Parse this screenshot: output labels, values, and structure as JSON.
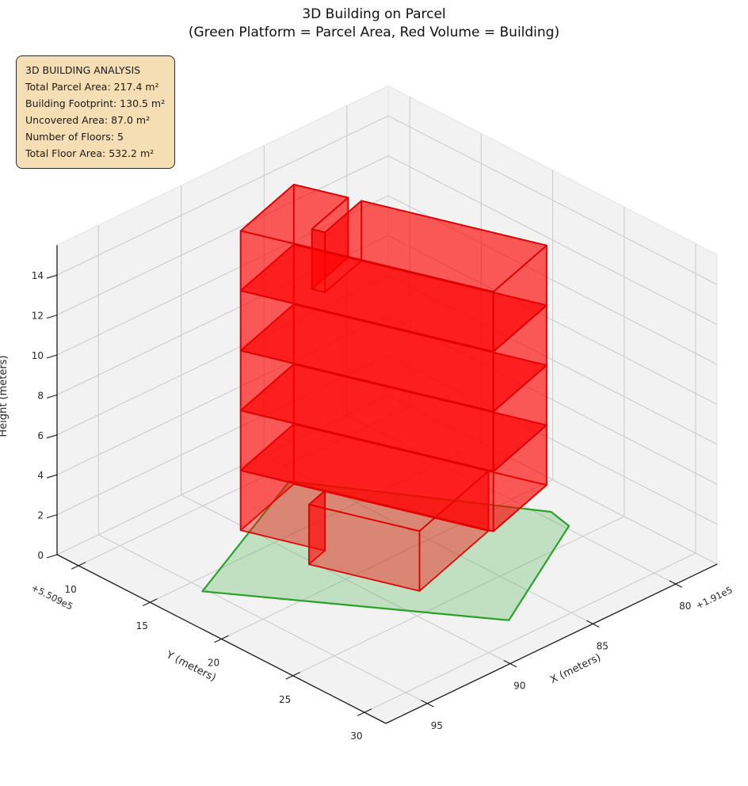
{
  "header": {
    "title_line1": "3D Building on Parcel",
    "title_line2": "(Green Platform = Parcel Area, Red Volume = Building)"
  },
  "info_box": {
    "title": "3D BUILDING ANALYSIS",
    "lines": [
      "Total Parcel Area: 217.4 m²",
      "Building Footprint: 130.5 m²",
      "Uncovered Area: 87.0 m²",
      "Number of Floors: 5",
      "Total Floor Area: 532.2 m²"
    ],
    "bg_color": "#f5deb3",
    "border_color": "#2b2b2b"
  },
  "chart_data": {
    "type": "3d-building-plot",
    "title": "3D Building on Parcel",
    "subtitle": "(Green Platform = Parcel Area, Red Volume = Building)",
    "axes": {
      "x": {
        "label": "X (meters)",
        "ticks": [
          95,
          90,
          85,
          80
        ],
        "offset_text": "+1.91e5",
        "range": [
          77.5,
          97.5
        ],
        "direction": "reversed"
      },
      "y": {
        "label": "Y (meters)",
        "ticks": [
          10,
          15,
          20,
          25,
          30
        ],
        "offset_text": "+5.509e5",
        "range": [
          8.5,
          31.5
        ]
      },
      "z": {
        "label": "Height (meters)",
        "ticks": [
          0,
          2,
          4,
          6,
          8,
          10,
          12,
          14
        ],
        "range": [
          0,
          15.5
        ]
      }
    },
    "parcel": {
      "vertices": [
        [
          95.2,
          16.0
        ],
        [
          85.8,
          11.2
        ],
        [
          79.5,
          22.2
        ],
        [
          79.8,
          23.8
        ],
        [
          87.4,
          28.4
        ]
      ],
      "edge_color": "#2aa22a",
      "fill_color": "rgba(80,180,80,0.30)",
      "area_m2": 217.4
    },
    "building": {
      "edge_color": "rgba(222,0,0,0.95)",
      "face_color": "rgba(255,0,0,0.40)",
      "floor_height_m": 3,
      "num_floors": 5,
      "footprint_m2": 130.5,
      "floors": [
        {
          "name": "floor-1",
          "z0": 0,
          "z1": 3,
          "footprint": [
            [
              90.3,
              13.0
            ],
            [
              88.91,
              17.28
            ],
            [
              90.24,
              17.71
            ],
            [
              88.41,
              23.32
            ],
            [
              82.61,
              21.43
            ],
            [
              85.83,
              11.54
            ]
          ]
        },
        {
          "name": "floor-2",
          "z0": 3,
          "z1": 6,
          "footprint": [
            [
              90.3,
              13.0
            ],
            [
              86.12,
              25.84
            ],
            [
              81.65,
              24.38
            ],
            [
              85.83,
              11.54
            ]
          ]
        },
        {
          "name": "floor-3",
          "z0": 6,
          "z1": 9,
          "footprint": [
            [
              90.3,
              13.0
            ],
            [
              86.12,
              25.84
            ],
            [
              81.65,
              24.38
            ],
            [
              85.83,
              11.54
            ]
          ]
        },
        {
          "name": "floor-4",
          "z0": 9,
          "z1": 12,
          "footprint": [
            [
              90.3,
              13.0
            ],
            [
              86.12,
              25.84
            ],
            [
              81.65,
              24.38
            ],
            [
              85.83,
              11.54
            ]
          ]
        },
        {
          "name": "floor-5",
          "z0": 12,
          "z1": 15,
          "footprint": [
            [
              90.3,
              13.0
            ],
            [
              86.12,
              25.84
            ],
            [
              81.65,
              24.38
            ],
            [
              84.71,
              14.97
            ],
            [
              87.76,
              15.96
            ],
            [
              87.97,
              15.29
            ],
            [
              84.93,
              14.3
            ],
            [
              85.83,
              11.54
            ]
          ]
        }
      ]
    },
    "style": {
      "pane_color": "#f2f2f2",
      "pane_edge_color": "#e3e3e3",
      "grid_color": "#cccccc",
      "axis_line_color": "#1a1a1a",
      "tick_text_color": "#262626"
    }
  }
}
